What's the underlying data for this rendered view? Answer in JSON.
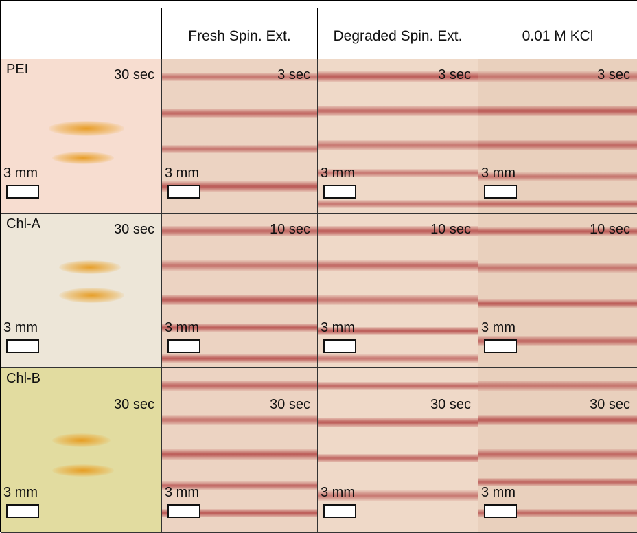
{
  "header": {
    "columns": [
      "Fresh Spin. Ext.",
      "Degraded Spin. Ext.",
      "0.01 M KCl"
    ]
  },
  "rows": [
    {
      "label": "PEI",
      "cells": [
        {
          "time": "30 sec",
          "scale": "3 mm"
        },
        {
          "time": "3 sec",
          "scale": "3 mm"
        },
        {
          "time": "3 sec",
          "scale": "3 mm"
        },
        {
          "time": "3 sec",
          "scale": "3 mm"
        }
      ]
    },
    {
      "label": "Chl-A",
      "cells": [
        {
          "time": "30 sec",
          "scale": "3 mm"
        },
        {
          "time": "10 sec",
          "scale": "3 mm"
        },
        {
          "time": "10 sec",
          "scale": "3 mm"
        },
        {
          "time": "10 sec",
          "scale": "3 mm"
        }
      ]
    },
    {
      "label": "Chl-B",
      "cells": [
        {
          "time": "30 sec",
          "scale": "3 mm"
        },
        {
          "time": "30 sec",
          "scale": "3 mm"
        },
        {
          "time": "30 sec",
          "scale": "3 mm"
        },
        {
          "time": "30 sec",
          "scale": "3 mm"
        }
      ]
    }
  ]
}
